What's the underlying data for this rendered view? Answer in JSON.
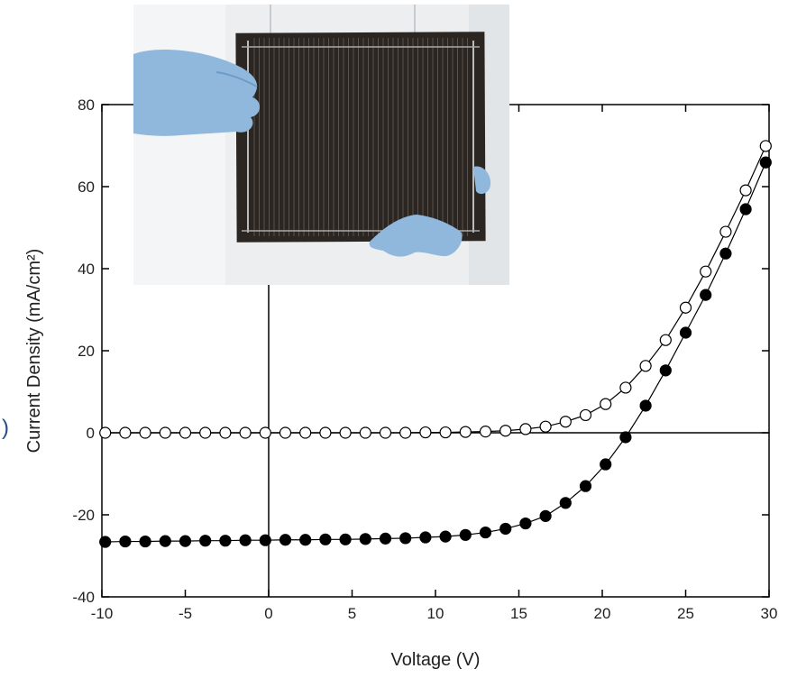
{
  "chart_data": {
    "type": "scatter-line",
    "x_label": "Voltage (V)",
    "y_label": "Current Density (mA/cm²)",
    "side_text": ")",
    "xlim": [
      -10,
      30
    ],
    "ylim": [
      -40,
      80
    ],
    "xticks": [
      -10,
      -5,
      0,
      5,
      10,
      15,
      20,
      25,
      30
    ],
    "yticks": [
      -40,
      -20,
      0,
      20,
      40,
      60,
      80
    ],
    "zero_lines": true,
    "x": [
      -9.8,
      -8.6,
      -7.4,
      -6.2,
      -5.0,
      -3.8,
      -2.6,
      -1.4,
      -0.2,
      1.0,
      2.2,
      3.4,
      4.6,
      5.8,
      7.0,
      8.2,
      9.4,
      10.6,
      11.8,
      13.0,
      14.2,
      15.4,
      16.6,
      17.8,
      19.0,
      20.2,
      21.4,
      22.6,
      23.8,
      25.0,
      26.2,
      27.4,
      28.6,
      29.8
    ],
    "series": [
      {
        "color": "#000000",
        "marker_fill": "#ffffff",
        "values": [
          0.0,
          0.0,
          0.0,
          0.0,
          0.0,
          0.0,
          0.0,
          0.0,
          0.0,
          0.0,
          0.0,
          0.0,
          0.0,
          0.0,
          0.0,
          0.0,
          0.1,
          0.1,
          0.2,
          0.3,
          0.5,
          0.9,
          1.5,
          2.7,
          4.3,
          7.0,
          11.0,
          16.3,
          22.6,
          30.5,
          39.3,
          49.0,
          59.1,
          69.9
        ]
      },
      {
        "color": "#000000",
        "marker_fill": "#000000",
        "values": [
          -26.6,
          -26.5,
          -26.5,
          -26.4,
          -26.4,
          -26.3,
          -26.3,
          -26.2,
          -26.2,
          -26.1,
          -26.1,
          -26.0,
          -26.0,
          -25.9,
          -25.8,
          -25.7,
          -25.5,
          -25.3,
          -24.9,
          -24.3,
          -23.4,
          -22.1,
          -20.3,
          -17.1,
          -13.0,
          -7.7,
          -1.1,
          6.6,
          15.2,
          24.4,
          33.6,
          43.7,
          54.5,
          65.9
        ]
      }
    ]
  }
}
